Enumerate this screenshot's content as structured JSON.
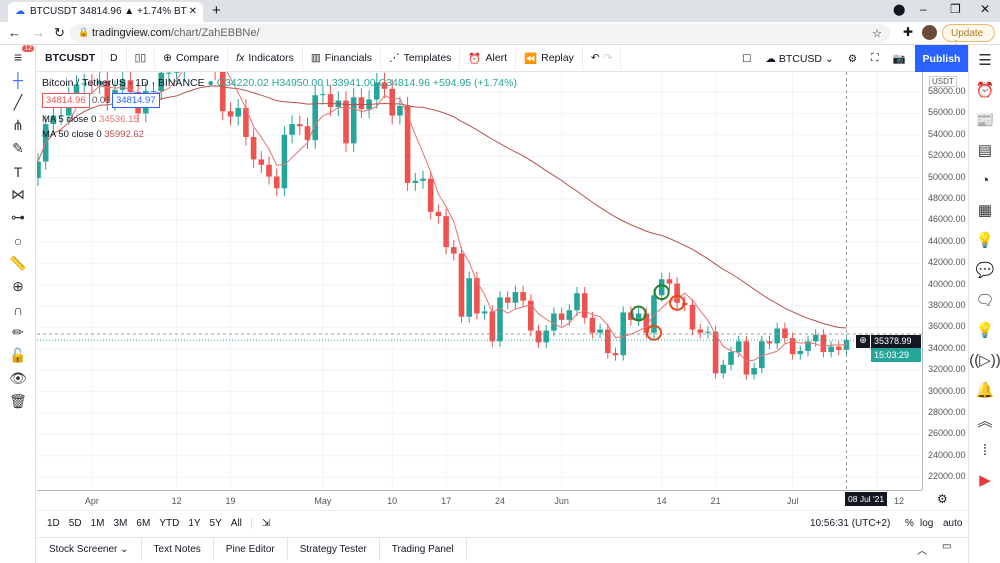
{
  "browser": {
    "tab_title": "BTCUSDT 34814.96 ▲ +1.74% BT",
    "new_tab": "+",
    "url_host": "tradingview.com",
    "url_path": "/chart/ZahEBBNe/",
    "update_label": "Update"
  },
  "toolbar": {
    "symbol": "BTCUSDT",
    "interval": "D",
    "compare": "Compare",
    "indicators": "Indicators",
    "financials": "Financials",
    "templates": "Templates",
    "alert": "Alert",
    "replay": "Replay",
    "layout_name": "BTCUSD",
    "publish": "Publish",
    "menu_badge": "12"
  },
  "legend": {
    "title": "Bitcoin / TetherUS · 1D · BINANCE",
    "o": "O34220.02",
    "h": "H34950.00",
    "l": "L33941.00",
    "c": "C34814.96",
    "change": "+594.95 (+1.74%)",
    "sell": "34814.96",
    "spread": "0.01",
    "buy": "34814.97",
    "ma5_label": "MA 5 close 0",
    "ma5_value": "34536.15",
    "ma50_label": "MA 50 close 0",
    "ma50_value": "35992.62"
  },
  "price_axis": {
    "currency": "USDT",
    "ticks": [
      "58000.00",
      "56000.00",
      "54000.00",
      "52000.00",
      "50000.00",
      "48000.00",
      "46000.00",
      "44000.00",
      "42000.00",
      "40000.00",
      "38000.00",
      "36000.00",
      "34000.00",
      "32000.00",
      "30000.00",
      "28000.00",
      "26000.00",
      "24000.00",
      "22000.00"
    ],
    "crosshair_price": "35378.99",
    "last_price": "34814.96",
    "countdown": "15:03:29"
  },
  "time_axis": {
    "ticks": [
      {
        "label": "Apr",
        "date": "2021-04-01"
      },
      {
        "label": "12",
        "date": "2021-04-12"
      },
      {
        "label": "19",
        "date": "2021-04-19"
      },
      {
        "label": "May",
        "date": "2021-05-01"
      },
      {
        "label": "10",
        "date": "2021-05-10"
      },
      {
        "label": "17",
        "date": "2021-05-17"
      },
      {
        "label": "24",
        "date": "2021-05-24"
      },
      {
        "label": "Jun",
        "date": "2021-06-01"
      },
      {
        "label": "14",
        "date": "2021-06-14"
      },
      {
        "label": "21",
        "date": "2021-06-21"
      },
      {
        "label": "Jul",
        "date": "2021-07-01"
      },
      {
        "label": "12",
        "date": "2021-07-12"
      }
    ],
    "crosshair_date": "08 Jul '21"
  },
  "range_bar": {
    "ranges": [
      "1D",
      "5D",
      "1M",
      "3M",
      "6M",
      "YTD",
      "1Y",
      "5Y",
      "All"
    ],
    "clock": "10:56:31 (UTC+2)",
    "percent": "%",
    "log": "log",
    "auto": "auto"
  },
  "bottom_tabs": [
    "Stock Screener",
    "Text Notes",
    "Pine Editor",
    "Strategy Tester",
    "Trading Panel"
  ],
  "colors": {
    "up": "#26a69a",
    "down": "#ef5350",
    "ma5": "#e57373",
    "ma50": "#b5514a",
    "accent": "#2962ff"
  },
  "chart_data": {
    "type": "candlestick",
    "start_date": "2021-03-25",
    "ylim": [
      22000,
      60000
    ],
    "closes": [
      51500,
      55000,
      55800,
      55800,
      57600,
      58700,
      58800,
      58700,
      59000,
      57100,
      58200,
      59100,
      58000,
      56000,
      58100,
      58100,
      59800,
      59800,
      59900,
      63500,
      62900,
      63200,
      61300,
      60000,
      56200,
      55700,
      56500,
      53800,
      51700,
      51200,
      50100,
      49000,
      54000,
      55000,
      54800,
      53500,
      57700,
      57800,
      56600,
      57200,
      53200,
      57500,
      56400,
      57300,
      58900,
      58300,
      55800,
      56700,
      49500,
      49700,
      49900,
      46800,
      46400,
      43500,
      42900,
      37000,
      40600,
      37300,
      37500,
      34700,
      38800,
      38300,
      39300,
      38500,
      35700,
      34600,
      35700,
      37300,
      36700,
      37600,
      39200,
      36900,
      35500,
      35800,
      33600,
      33400,
      37400,
      36700,
      37300,
      35500,
      39000,
      40500,
      40100,
      38300,
      38100,
      35800,
      35500,
      35600,
      31700,
      32500,
      33700,
      34700,
      31600,
      32200,
      34700,
      34500,
      35900,
      35000,
      33500,
      33800,
      34700,
      35300,
      33700,
      34200,
      33900,
      34814.96
    ],
    "annotations": [
      {
        "date": "2021-06-11",
        "price": 37300,
        "color": "green"
      },
      {
        "date": "2021-06-14",
        "price": 39300,
        "color": "green"
      },
      {
        "date": "2021-06-13",
        "price": 35500,
        "color": "red"
      },
      {
        "date": "2021-06-16",
        "price": 38300,
        "color": "red"
      }
    ]
  }
}
